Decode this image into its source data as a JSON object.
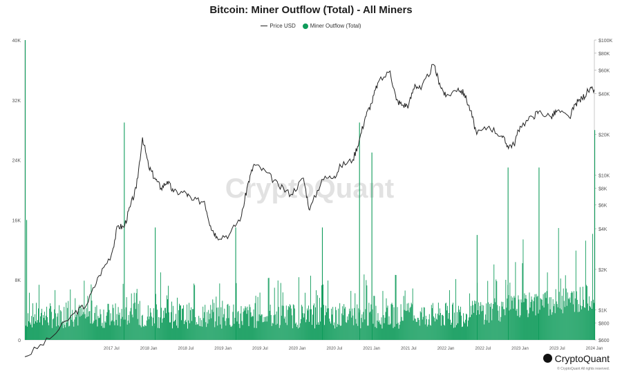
{
  "chart_data": {
    "type": "bar+line",
    "title": "Bitcoin: Miner Outflow (Total) - All Miners",
    "legend": {
      "position": "top-center"
    },
    "series": [
      {
        "name": "Price USD",
        "type": "line",
        "axis": "right",
        "color": "#222222",
        "points": [
          [
            "2016-05",
            450
          ],
          [
            "2016-09",
            610
          ],
          [
            "2017-01",
            950
          ],
          [
            "2017-03",
            1100
          ],
          [
            "2017-05",
            1800
          ],
          [
            "2017-07",
            2600
          ],
          [
            "2017-08",
            4200
          ],
          [
            "2017-09",
            4100
          ],
          [
            "2017-10",
            5800
          ],
          [
            "2017-11",
            8000
          ],
          [
            "2017-12",
            19000
          ],
          [
            "2018-01",
            11500
          ],
          [
            "2018-02",
            9500
          ],
          [
            "2018-03",
            8000
          ],
          [
            "2018-04",
            9000
          ],
          [
            "2018-05",
            7500
          ],
          [
            "2018-07",
            7400
          ],
          [
            "2018-08",
            6500
          ],
          [
            "2018-10",
            6400
          ],
          [
            "2018-11",
            4200
          ],
          [
            "2018-12",
            3500
          ],
          [
            "2019-02",
            3600
          ],
          [
            "2019-04",
            5000
          ],
          [
            "2019-05",
            8500
          ],
          [
            "2019-06",
            12000
          ],
          [
            "2019-08",
            10500
          ],
          [
            "2019-10",
            8300
          ],
          [
            "2019-12",
            7200
          ],
          [
            "2020-02",
            9500
          ],
          [
            "2020-03",
            5500
          ],
          [
            "2020-05",
            9300
          ],
          [
            "2020-07",
            9800
          ],
          [
            "2020-08",
            11700
          ],
          [
            "2020-10",
            13000
          ],
          [
            "2020-11",
            18000
          ],
          [
            "2020-12",
            27000
          ],
          [
            "2021-01",
            34000
          ],
          [
            "2021-02",
            48000
          ],
          [
            "2021-04",
            59000
          ],
          [
            "2021-05",
            36000
          ],
          [
            "2021-06",
            33000
          ],
          [
            "2021-07",
            33000
          ],
          [
            "2021-08",
            47000
          ],
          [
            "2021-09",
            43000
          ],
          [
            "2021-11",
            66000
          ],
          [
            "2021-12",
            48000
          ],
          [
            "2022-01",
            38000
          ],
          [
            "2022-03",
            44000
          ],
          [
            "2022-04",
            40000
          ],
          [
            "2022-05",
            30000
          ],
          [
            "2022-06",
            20000
          ],
          [
            "2022-08",
            23000
          ],
          [
            "2022-10",
            19500
          ],
          [
            "2022-11",
            16500
          ],
          [
            "2022-12",
            16800
          ],
          [
            "2023-01",
            23000
          ],
          [
            "2023-03",
            27000
          ],
          [
            "2023-04",
            29500
          ],
          [
            "2023-06",
            27000
          ],
          [
            "2023-07",
            30000
          ],
          [
            "2023-09",
            26500
          ],
          [
            "2023-10",
            34000
          ],
          [
            "2023-11",
            37000
          ],
          [
            "2023-12",
            42000
          ],
          [
            "2024-01",
            43000
          ]
        ]
      },
      {
        "name": "Miner Outflow (Total)",
        "type": "bar",
        "axis": "left",
        "color": "#0e9b5a",
        "note_peaks": [
          [
            "2016-05",
            40000
          ],
          [
            "2016-05",
            16000
          ],
          [
            "2017-09",
            29000
          ],
          [
            "2018-02",
            15000
          ],
          [
            "2019-03",
            15000
          ],
          [
            "2020-05",
            15000
          ],
          [
            "2020-11",
            29000
          ],
          [
            "2021-01",
            25000
          ],
          [
            "2022-06",
            14000
          ],
          [
            "2022-11",
            23000
          ],
          [
            "2023-04",
            23000
          ],
          [
            "2024-01",
            28000
          ]
        ]
      }
    ],
    "left_axis": {
      "min": 0,
      "max": 40000,
      "ticks": [
        "0",
        "8K",
        "16K",
        "24K",
        "32K",
        "40K"
      ],
      "tick_values": [
        0,
        8000,
        16000,
        24000,
        32000,
        40000
      ]
    },
    "right_axis": {
      "scale": "log",
      "min": 600,
      "max": 100000,
      "ticks": [
        "$600",
        "$800",
        "$1K",
        "$2K",
        "$4K",
        "$6K",
        "$8K",
        "$10K",
        "$20K",
        "$40K",
        "$60K",
        "$80K",
        "$100K"
      ],
      "tick_values": [
        600,
        800,
        1000,
        2000,
        4000,
        6000,
        8000,
        10000,
        20000,
        40000,
        60000,
        80000,
        100000
      ]
    },
    "x_axis": {
      "start": "2016-05",
      "end": "2024-01",
      "tick_labels": [
        "2017 Jul",
        "2018 Jan",
        "2018 Jul",
        "2019 Jan",
        "2019 Jul",
        "2020 Jan",
        "2020 Jul",
        "2021 Jan",
        "2021 Jul",
        "2022 Jan",
        "2022 Jul",
        "2023 Jan",
        "2023 Jul",
        "2024 Jan"
      ],
      "tick_dates": [
        "2017-07",
        "2018-01",
        "2018-07",
        "2019-01",
        "2019-07",
        "2020-01",
        "2020-07",
        "2021-01",
        "2021-07",
        "2022-01",
        "2022-07",
        "2023-01",
        "2023-07",
        "2024-01"
      ]
    },
    "watermark": "CryptoQuant"
  },
  "branding": {
    "name": "CryptoQuant",
    "copyright": "© CryptoQuant All rights reserved."
  }
}
